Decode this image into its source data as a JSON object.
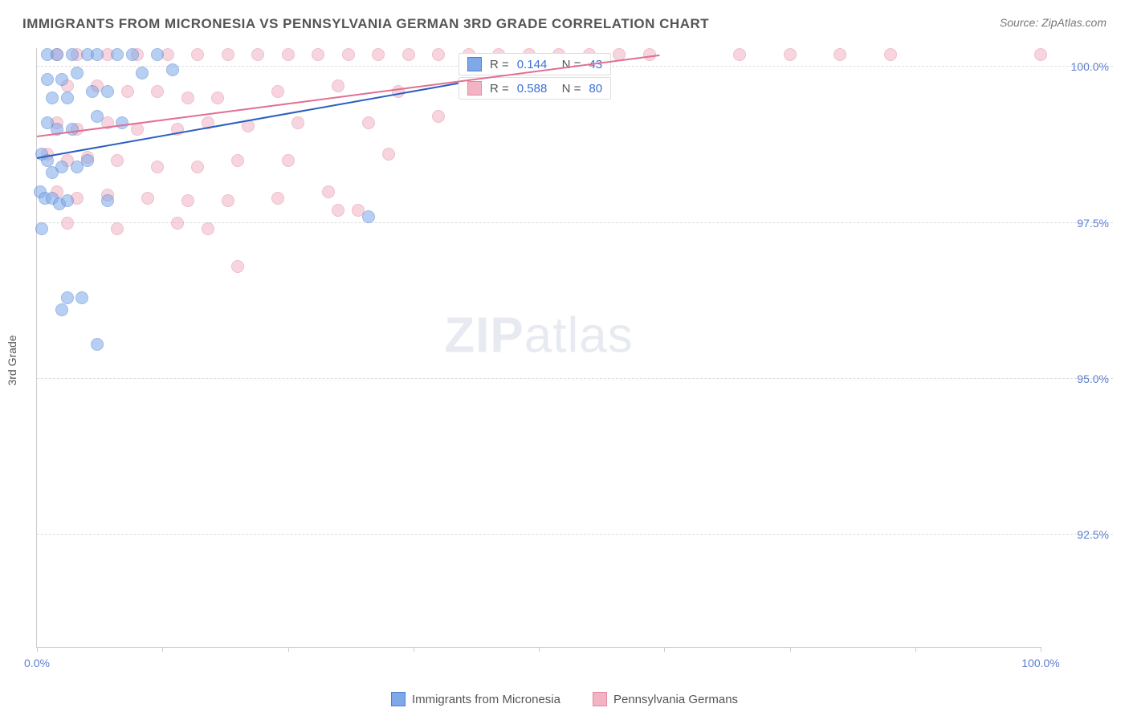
{
  "header": {
    "title": "IMMIGRANTS FROM MICRONESIA VS PENNSYLVANIA GERMAN 3RD GRADE CORRELATION CHART",
    "source": "Source: ZipAtlas.com"
  },
  "chart": {
    "type": "scatter",
    "ylabel": "3rd Grade",
    "xlim": [
      0,
      100
    ],
    "ylim": [
      90.7,
      100.3
    ],
    "yticks": [
      92.5,
      95.0,
      97.5,
      100.0
    ],
    "ytick_labels": [
      "92.5%",
      "95.0%",
      "97.5%",
      "100.0%"
    ],
    "xtick_positions": [
      0,
      12.5,
      25,
      37.5,
      50,
      62.5,
      75,
      87.5,
      100
    ],
    "xtick_labels_visible": {
      "0": "0.0%",
      "100": "100.0%"
    },
    "background_color": "#ffffff",
    "grid_color": "#dddddd",
    "axis_color": "#cccccc",
    "label_color": "#5b7fd1",
    "title_color": "#555555",
    "marker_radius": 8,
    "marker_opacity": 0.55,
    "series": {
      "blue": {
        "label": "Immigrants from Micronesia",
        "fill": "#7ea8e8",
        "stroke": "#4a7fd1",
        "trend_color": "#2b5fc0",
        "R": "0.144",
        "N": "43",
        "trend": {
          "x1": 0,
          "y1": 98.55,
          "x2": 42,
          "y2": 99.75
        },
        "points": [
          [
            1.0,
            100.2
          ],
          [
            2.0,
            100.2
          ],
          [
            3.5,
            100.2
          ],
          [
            5.0,
            100.2
          ],
          [
            6.0,
            100.2
          ],
          [
            8.0,
            100.2
          ],
          [
            9.5,
            100.2
          ],
          [
            1.0,
            99.8
          ],
          [
            2.5,
            99.8
          ],
          [
            4.0,
            99.9
          ],
          [
            1.5,
            99.5
          ],
          [
            3.0,
            99.5
          ],
          [
            5.5,
            99.6
          ],
          [
            7.0,
            99.6
          ],
          [
            10.5,
            99.9
          ],
          [
            1.0,
            99.1
          ],
          [
            2.0,
            99.0
          ],
          [
            3.5,
            99.0
          ],
          [
            6.0,
            99.2
          ],
          [
            8.5,
            99.1
          ],
          [
            0.5,
            98.6
          ],
          [
            1.0,
            98.5
          ],
          [
            1.5,
            98.3
          ],
          [
            2.5,
            98.4
          ],
          [
            4.0,
            98.4
          ],
          [
            5.0,
            98.5
          ],
          [
            0.3,
            98.0
          ],
          [
            0.8,
            97.9
          ],
          [
            1.5,
            97.9
          ],
          [
            2.2,
            97.8
          ],
          [
            3.0,
            97.85
          ],
          [
            7.0,
            97.85
          ],
          [
            0.5,
            97.4
          ],
          [
            33.0,
            97.6
          ],
          [
            3.0,
            96.3
          ],
          [
            4.5,
            96.3
          ],
          [
            2.5,
            96.1
          ],
          [
            6.0,
            95.55
          ],
          [
            12.0,
            100.2
          ],
          [
            13.5,
            99.95
          ]
        ]
      },
      "pink": {
        "label": "Pennsylvania Germans",
        "fill": "#f2b4c4",
        "stroke": "#e389a3",
        "trend_color": "#e16f92",
        "R": "0.588",
        "N": "80",
        "trend": {
          "x1": 0,
          "y1": 98.9,
          "x2": 62,
          "y2": 100.2
        },
        "points": [
          [
            2,
            100.2
          ],
          [
            4,
            100.2
          ],
          [
            7,
            100.2
          ],
          [
            10,
            100.2
          ],
          [
            13,
            100.2
          ],
          [
            16,
            100.2
          ],
          [
            19,
            100.2
          ],
          [
            22,
            100.2
          ],
          [
            25,
            100.2
          ],
          [
            28,
            100.2
          ],
          [
            31,
            100.2
          ],
          [
            34,
            100.2
          ],
          [
            37,
            100.2
          ],
          [
            40,
            100.2
          ],
          [
            43,
            100.2
          ],
          [
            46,
            100.2
          ],
          [
            49,
            100.2
          ],
          [
            52,
            100.2
          ],
          [
            55,
            100.2
          ],
          [
            58,
            100.2
          ],
          [
            61,
            100.2
          ],
          [
            70,
            100.2
          ],
          [
            75,
            100.2
          ],
          [
            80,
            100.2
          ],
          [
            85,
            100.2
          ],
          [
            100,
            100.2
          ],
          [
            3,
            99.7
          ],
          [
            6,
            99.7
          ],
          [
            9,
            99.6
          ],
          [
            12,
            99.6
          ],
          [
            15,
            99.5
          ],
          [
            18,
            99.5
          ],
          [
            24,
            99.6
          ],
          [
            30,
            99.7
          ],
          [
            36,
            99.6
          ],
          [
            2,
            99.1
          ],
          [
            4,
            99.0
          ],
          [
            7,
            99.1
          ],
          [
            10,
            99.0
          ],
          [
            14,
            99.0
          ],
          [
            17,
            99.1
          ],
          [
            21,
            99.05
          ],
          [
            26,
            99.1
          ],
          [
            33,
            99.1
          ],
          [
            40,
            99.2
          ],
          [
            1,
            98.6
          ],
          [
            3,
            98.5
          ],
          [
            5,
            98.55
          ],
          [
            8,
            98.5
          ],
          [
            12,
            98.4
          ],
          [
            16,
            98.4
          ],
          [
            20,
            98.5
          ],
          [
            25,
            98.5
          ],
          [
            35,
            98.6
          ],
          [
            2,
            98.0
          ],
          [
            4,
            97.9
          ],
          [
            7,
            97.95
          ],
          [
            11,
            97.9
          ],
          [
            15,
            97.85
          ],
          [
            19,
            97.85
          ],
          [
            24,
            97.9
          ],
          [
            29,
            98.0
          ],
          [
            3,
            97.5
          ],
          [
            8,
            97.4
          ],
          [
            14,
            97.5
          ],
          [
            17,
            97.4
          ],
          [
            30,
            97.7
          ],
          [
            32,
            97.7
          ],
          [
            20,
            96.8
          ]
        ]
      }
    },
    "watermark": {
      "zip": "ZIP",
      "atlas": "atlas"
    }
  }
}
